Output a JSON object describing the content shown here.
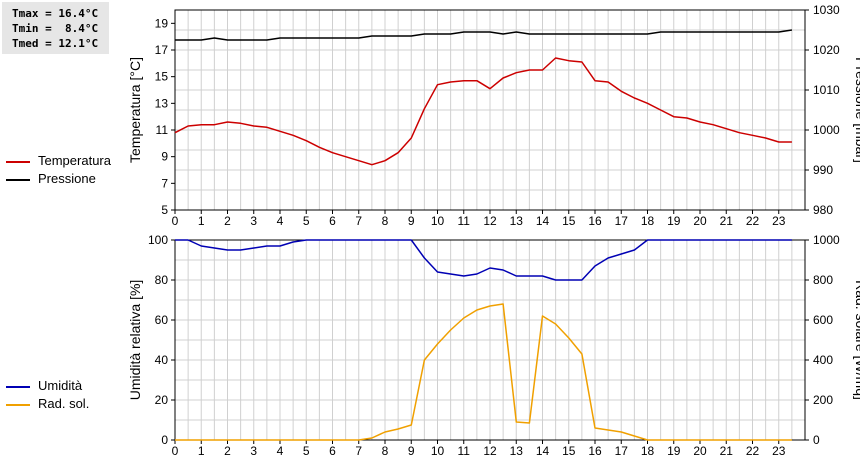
{
  "stats": {
    "tmax": "Tmax = 16.4°C",
    "tmin": "Tmin =  8.4°C",
    "tmed": "Tmed = 12.1°C"
  },
  "colors": {
    "temperature": "#cc0000",
    "pressure": "#000000",
    "humidity": "#0000b4",
    "solar": "#f0a000"
  },
  "legend_top": {
    "temperature": "Temperatura",
    "pressure": "Pressione"
  },
  "legend_bottom": {
    "humidity": "Umidità",
    "solar": "Rad. sol."
  },
  "chart_data": [
    {
      "type": "line",
      "xlabel": "",
      "ylabel": "Temperatura [°C]",
      "ylabel_right": "Pressione [mbar]",
      "xlim": [
        0,
        24
      ],
      "ylim": [
        5,
        20
      ],
      "ylim_right": [
        980,
        1030
      ],
      "x_ticks": [
        0,
        1,
        2,
        3,
        4,
        5,
        6,
        7,
        8,
        9,
        10,
        11,
        12,
        13,
        14,
        15,
        16,
        17,
        18,
        19,
        20,
        21,
        22,
        23
      ],
      "y_ticks": [
        5,
        7,
        9,
        11,
        13,
        15,
        17,
        19
      ],
      "y_ticks_right": [
        980,
        990,
        1000,
        1010,
        1020,
        1030
      ],
      "grid": true,
      "series": [
        {
          "name": "Temperatura",
          "axis": "left",
          "x": [
            0,
            0.5,
            1,
            1.5,
            2,
            2.5,
            3,
            3.5,
            4,
            4.5,
            5,
            5.5,
            6,
            6.5,
            7,
            7.5,
            8,
            8.5,
            9,
            9.5,
            10,
            10.5,
            11,
            11.5,
            12,
            12.5,
            13,
            13.5,
            14,
            14.5,
            15,
            15.5,
            16,
            16.5,
            17,
            17.5,
            18,
            18.5,
            19,
            19.5,
            20,
            20.5,
            21,
            21.5,
            22,
            22.5,
            23,
            23.5
          ],
          "values": [
            10.8,
            11.3,
            11.4,
            11.4,
            11.6,
            11.5,
            11.3,
            11.2,
            10.9,
            10.6,
            10.2,
            9.7,
            9.3,
            9.0,
            8.7,
            8.4,
            8.7,
            9.3,
            10.4,
            12.6,
            14.4,
            14.6,
            14.7,
            14.7,
            14.1,
            14.9,
            15.3,
            15.5,
            15.5,
            16.4,
            16.2,
            16.1,
            14.7,
            14.6,
            13.9,
            13.4,
            13.0,
            12.5,
            12.0,
            11.9,
            11.6,
            11.4,
            11.1,
            10.8,
            10.6,
            10.4,
            10.1,
            10.1
          ]
        },
        {
          "name": "Pressione",
          "axis": "right",
          "x": [
            0,
            1,
            1.5,
            2,
            3.5,
            4,
            7,
            7.5,
            9,
            9.5,
            10.5,
            11,
            12,
            12.5,
            13,
            13.5,
            17,
            17.5,
            18,
            18.5,
            23,
            23.5
          ],
          "values": [
            1022.5,
            1022.5,
            1023.0,
            1022.5,
            1022.5,
            1023.0,
            1023.0,
            1023.5,
            1023.5,
            1024.0,
            1024.0,
            1024.5,
            1024.5,
            1024.0,
            1024.5,
            1024.0,
            1024.0,
            1024.0,
            1024.0,
            1024.5,
            1024.5,
            1025.0
          ]
        }
      ]
    },
    {
      "type": "line",
      "xlabel": "",
      "ylabel": "Umidità relativa [%]",
      "ylabel_right": "Rad. solare [W/mq]",
      "xlim": [
        0,
        24
      ],
      "ylim": [
        0,
        100
      ],
      "ylim_right": [
        0,
        1000
      ],
      "x_ticks": [
        0,
        1,
        2,
        3,
        4,
        5,
        6,
        7,
        8,
        9,
        10,
        11,
        12,
        13,
        14,
        15,
        16,
        17,
        18,
        19,
        20,
        21,
        22,
        23
      ],
      "y_ticks": [
        0,
        20,
        40,
        60,
        80,
        100
      ],
      "y_ticks_right": [
        0,
        200,
        400,
        600,
        800,
        1000
      ],
      "grid": true,
      "series": [
        {
          "name": "Umidità",
          "axis": "left",
          "x": [
            0,
            0.5,
            1,
            1.5,
            2,
            2.5,
            3,
            3.5,
            4,
            4.5,
            5,
            5.5,
            6,
            6.5,
            7,
            7.5,
            8,
            8.5,
            9,
            9.5,
            10,
            10.5,
            11,
            11.5,
            12,
            12.5,
            13,
            13.5,
            14,
            14.5,
            15,
            15.5,
            16,
            16.5,
            17,
            17.5,
            18,
            18.5,
            19,
            19.5,
            20,
            20.5,
            21,
            21.5,
            22,
            22.5,
            23,
            23.5
          ],
          "values": [
            100,
            100,
            97,
            96,
            95,
            95,
            96,
            97,
            97,
            99,
            100,
            100,
            100,
            100,
            100,
            100,
            100,
            100,
            100,
            91,
            84,
            83,
            82,
            83,
            86,
            85,
            82,
            82,
            82,
            80,
            80,
            80,
            87,
            91,
            93,
            95,
            100,
            100,
            100,
            100,
            100,
            100,
            100,
            100,
            100,
            100,
            100,
            100
          ]
        },
        {
          "name": "Rad. sol.",
          "axis": "right",
          "x": [
            0,
            0.5,
            1,
            1.5,
            2,
            2.5,
            3,
            3.5,
            4,
            4.5,
            5,
            5.5,
            6,
            6.5,
            7,
            7.5,
            8,
            8.5,
            9,
            9.5,
            10,
            10.5,
            11,
            11.5,
            12,
            12.5,
            13,
            13.5,
            14,
            14.5,
            15,
            15.5,
            16,
            16.5,
            17,
            17.5,
            18,
            18.5,
            19,
            19.5,
            20,
            20.5,
            21,
            21.5,
            22,
            22.5,
            23,
            23.5
          ],
          "values": [
            0,
            0,
            0,
            0,
            0,
            0,
            0,
            0,
            0,
            0,
            0,
            0,
            0,
            0,
            0,
            10,
            40,
            55,
            75,
            400,
            480,
            550,
            610,
            650,
            670,
            680,
            90,
            85,
            620,
            580,
            510,
            430,
            60,
            50,
            40,
            20,
            0,
            0,
            0,
            0,
            0,
            0,
            0,
            0,
            0,
            0,
            0,
            0
          ]
        }
      ]
    }
  ]
}
